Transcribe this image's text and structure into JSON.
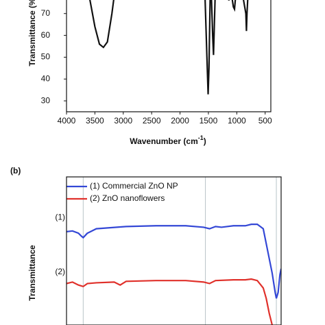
{
  "chart_data": [
    {
      "type": "line",
      "y_label": "Transmittance (%)",
      "x_label": [
        "Wavenumber (cm",
        "-1",
        ")"
      ],
      "xlim": [
        4000,
        400
      ],
      "ylim": [
        25,
        85
      ],
      "xticks": [
        4000,
        3500,
        3000,
        2500,
        2000,
        1500,
        1000,
        500
      ],
      "yticks": [
        30,
        40,
        50,
        60,
        70
      ],
      "series": [
        {
          "color": "#111111",
          "x": [
            3700,
            3600,
            3500,
            3420,
            3350,
            3280,
            3200,
            3150,
            3100,
            1620,
            1560,
            1520,
            1505,
            1490,
            1470,
            1450,
            1425,
            1410,
            1395,
            1380,
            1300,
            1160,
            1140,
            1100,
            1060,
            1040,
            1020,
            900,
            840,
            830,
            820,
            800,
            700
          ],
          "values": [
            90,
            78,
            64,
            56,
            54.5,
            57,
            70,
            80,
            90,
            90,
            78,
            45,
            33,
            45,
            76,
            80,
            60,
            51,
            65,
            79,
            80,
            80,
            76,
            80,
            73,
            72,
            78,
            79,
            70,
            62,
            70,
            80,
            82
          ]
        }
      ]
    },
    {
      "type": "line",
      "panel_label": "(b)",
      "y_label": "Transmittance",
      "xlim": [
        4000,
        400
      ],
      "ylim": [
        0,
        100
      ],
      "reference_lines": [
        3720,
        1670,
        480
      ],
      "legend": "upper left",
      "annotations": [
        {
          "text": "(1)",
          "x": 4000,
          "y": 68
        },
        {
          "text": "(2)",
          "x": 4000,
          "y": 31
        }
      ],
      "series": [
        {
          "name": "(1) Commercial ZnO NP",
          "color": "#3347d6",
          "x": [
            4000,
            3900,
            3800,
            3750,
            3720,
            3650,
            3500,
            3000,
            2500,
            2000,
            1700,
            1600,
            1500,
            1400,
            1200,
            1000,
            900,
            800,
            700,
            650,
            600,
            550,
            500,
            480,
            450,
            420,
            400
          ],
          "values": [
            63,
            63.5,
            62,
            60,
            59,
            62,
            65,
            66.5,
            67,
            67,
            66,
            65,
            66.5,
            66,
            67,
            67,
            68,
            68,
            65,
            55,
            45,
            35,
            22,
            18,
            22,
            34,
            38
          ]
        },
        {
          "name": "(2) ZnO nanoflowers",
          "color": "#e0302a",
          "x": [
            4000,
            3900,
            3800,
            3720,
            3650,
            3500,
            3200,
            3100,
            3000,
            2500,
            2000,
            1700,
            1600,
            1500,
            1200,
            1000,
            900,
            800,
            700,
            650,
            600,
            550,
            500
          ],
          "values": [
            28,
            29,
            27,
            26,
            28,
            28.5,
            29,
            27,
            29.5,
            30,
            30,
            29,
            28,
            30,
            30.5,
            30.5,
            31,
            30,
            25,
            18,
            8,
            0,
            -8
          ]
        }
      ]
    }
  ]
}
